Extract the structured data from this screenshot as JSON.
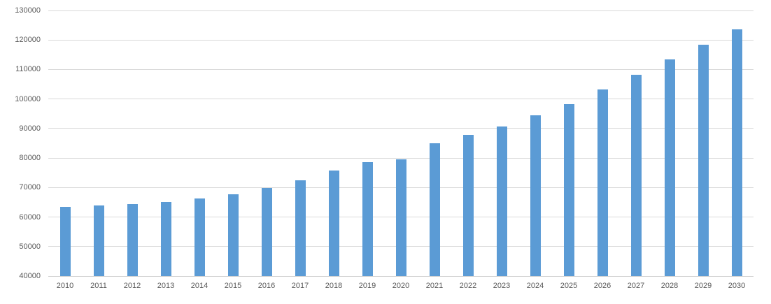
{
  "chart_data": {
    "type": "bar",
    "title": "",
    "xlabel": "",
    "ylabel": "",
    "categories": [
      "2010",
      "2011",
      "2012",
      "2013",
      "2014",
      "2015",
      "2016",
      "2017",
      "2018",
      "2019",
      "2020",
      "2021",
      "2022",
      "2023",
      "2024",
      "2025",
      "2026",
      "2027",
      "2028",
      "2029",
      "2030"
    ],
    "values": [
      63400,
      63900,
      64400,
      65000,
      66300,
      67800,
      69800,
      72500,
      75800,
      78500,
      79500,
      84900,
      87800,
      90800,
      94500,
      98300,
      103200,
      108200,
      113400,
      118500,
      123500
    ],
    "ylim": [
      40000,
      130000
    ],
    "ytick_step": 10000,
    "ytick_labels": [
      "130000",
      "120000",
      "110000",
      "100000",
      "90000",
      "80000",
      "70000",
      "60000",
      "50000",
      "40000"
    ],
    "grid": true,
    "legend": "none",
    "colors": {
      "bar": "#5B9BD5",
      "gridline": "#D9D9D9",
      "axis_line": "#D0D0D0",
      "tick_label": "#595959",
      "background": "#FFFFFF"
    }
  }
}
